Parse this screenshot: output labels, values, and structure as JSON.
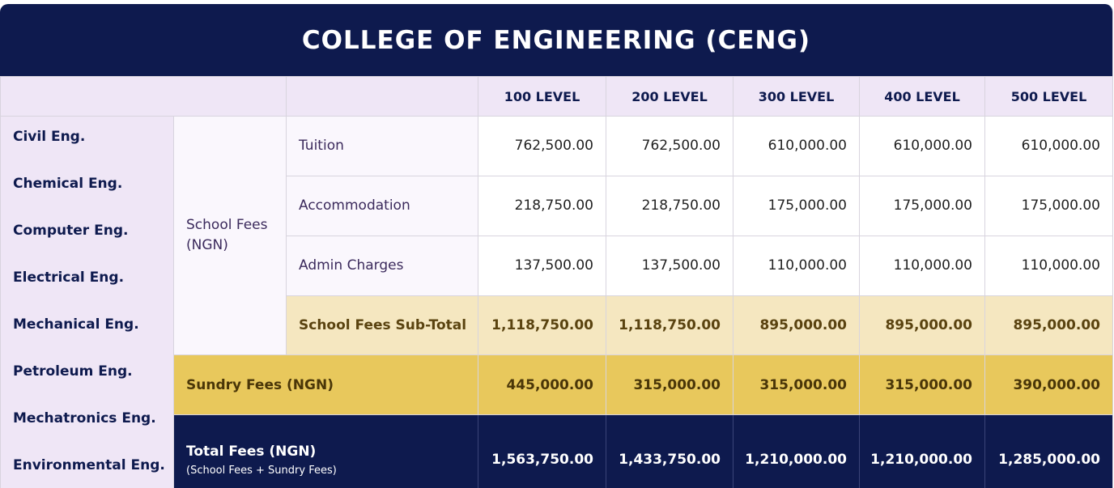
{
  "title": "COLLEGE OF ENGINEERING (CENG)",
  "levels": [
    "100 LEVEL",
    "200 LEVEL",
    "300 LEVEL",
    "400 LEVEL",
    "500 LEVEL"
  ],
  "departments": [
    "Civil Eng.",
    "Chemical Eng.",
    "Computer Eng.",
    "Electrical Eng.",
    "Mechanical Eng.",
    "Petroleum Eng.",
    "Mechatronics Eng.",
    "Environmental Eng."
  ],
  "school_fees_label": "School Fees (NGN)",
  "rows": {
    "tuition": {
      "label": "Tuition",
      "values": [
        "762,500.00",
        "762,500.00",
        "610,000.00",
        "610,000.00",
        "610,000.00"
      ]
    },
    "accommodation": {
      "label": "Accommodation",
      "values": [
        "218,750.00",
        "218,750.00",
        "175,000.00",
        "175,000.00",
        "175,000.00"
      ]
    },
    "admin": {
      "label": "Admin Charges",
      "values": [
        "137,500.00",
        "137,500.00",
        "110,000.00",
        "110,000.00",
        "110,000.00"
      ]
    },
    "subtotal": {
      "label": "School Fees Sub-Total",
      "values": [
        "1,118,750.00",
        "1,118,750.00",
        "895,000.00",
        "895,000.00",
        "895,000.00"
      ]
    },
    "sundry": {
      "label": "Sundry Fees (NGN)",
      "values": [
        "445,000.00",
        "315,000.00",
        "315,000.00",
        "315,000.00",
        "390,000.00"
      ]
    },
    "total": {
      "label": "Total Fees (NGN)",
      "sublabel": "(School Fees + Sundry Fees)",
      "values": [
        "1,563,750.00",
        "1,433,750.00",
        "1,210,000.00",
        "1,210,000.00",
        "1,285,000.00"
      ]
    }
  },
  "colors": {
    "navy": "#0e1a4e",
    "lavender": "#efe6f6",
    "subtotal_bg": "#f5e7c0",
    "sundry_bg": "#e8c85c"
  }
}
